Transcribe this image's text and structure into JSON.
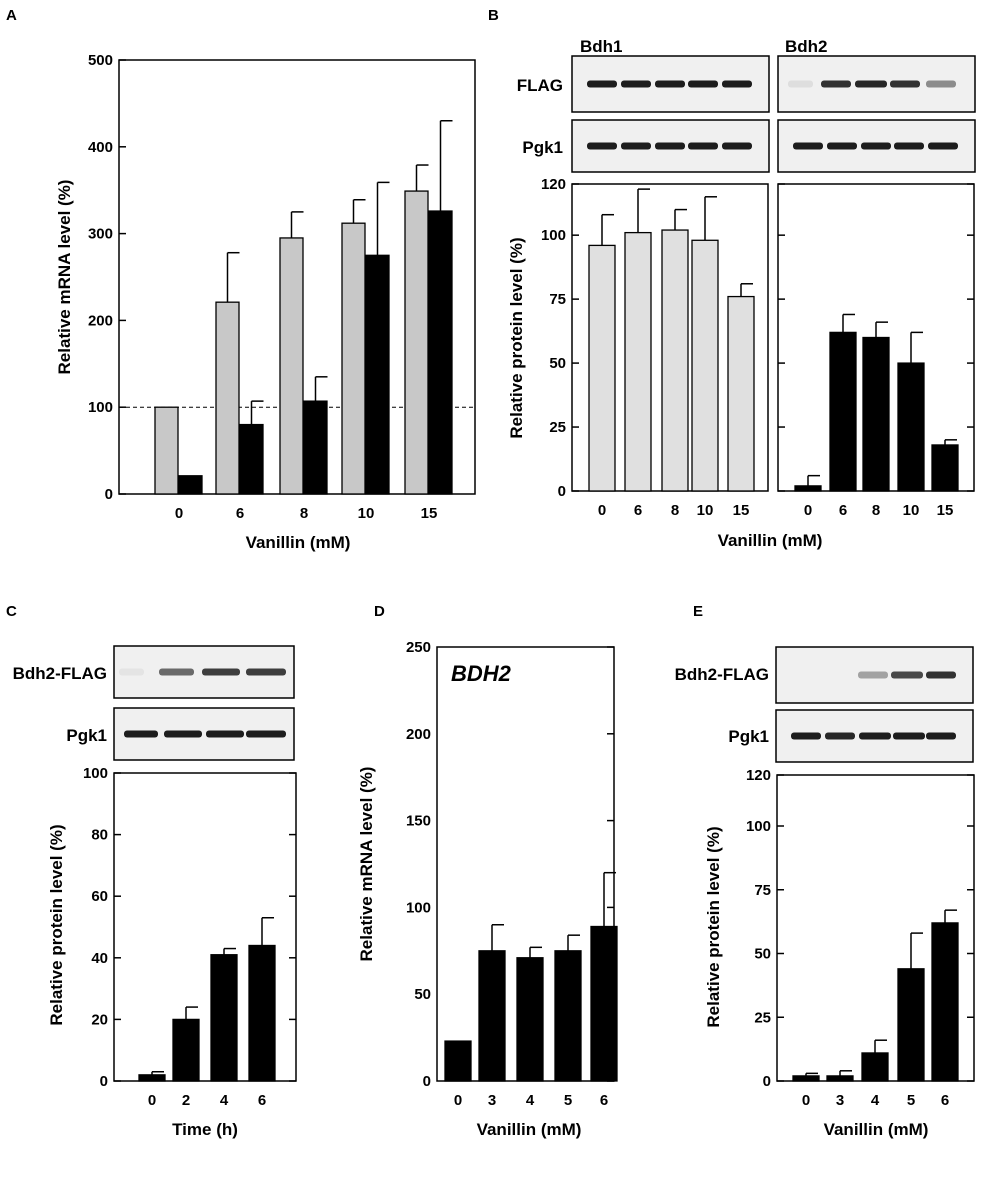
{
  "figure": {
    "panel_labels": [
      "A",
      "B",
      "C",
      "D",
      "E"
    ],
    "colors": {
      "bar_dark": "#000000",
      "bar_light": "#c8c8c8",
      "blot_bg": "#f0f0f0",
      "band": "#111111"
    }
  },
  "blots": {
    "B": {
      "lanes_left_title": "Bdh1",
      "lanes_right_title": "Bdh2",
      "row1_label": "FLAG",
      "row2_label": "Pgk1"
    },
    "C": {
      "row1_label": "Bdh2-FLAG",
      "row2_label": "Pgk1"
    },
    "E": {
      "row1_label": "Bdh2-FLAG",
      "row2_label": "Pgk1"
    }
  },
  "chart_data": [
    {
      "panel": "A",
      "type": "bar",
      "xlabel": "Vanillin (mM)",
      "ylabel": "Relative mRNA level (%)",
      "ylim": [
        0,
        500
      ],
      "yticks": [
        0,
        100,
        200,
        300,
        400,
        500
      ],
      "categories": [
        "0",
        "6",
        "8",
        "10",
        "15"
      ],
      "reference_line": 100,
      "series": [
        {
          "name": "light",
          "color": "#c8c8c8",
          "values": [
            100,
            221,
            295,
            312,
            349
          ],
          "errors": [
            0,
            57,
            30,
            27,
            30
          ]
        },
        {
          "name": "dark",
          "color": "#000000",
          "values": [
            21,
            80,
            107,
            275,
            326
          ],
          "errors": [
            0,
            27,
            28,
            84,
            104
          ]
        }
      ]
    },
    {
      "panel": "B-left",
      "type": "bar",
      "title": "Bdh1",
      "xlabel": "Vanillin (mM)",
      "ylabel": "Relative protein level (%)",
      "ylim": [
        0,
        120
      ],
      "yticks": [
        0,
        25,
        50,
        75,
        100,
        120
      ],
      "categories": [
        "0",
        "6",
        "8",
        "10",
        "15"
      ],
      "series": [
        {
          "name": "Bdh1",
          "color": "#e0e0e0",
          "values": [
            96,
            101,
            102,
            98,
            76
          ],
          "errors": [
            12,
            17,
            8,
            17,
            5
          ]
        }
      ]
    },
    {
      "panel": "B-right",
      "type": "bar",
      "title": "Bdh2",
      "xlabel": "Vanillin (mM)",
      "ylim": [
        0,
        120
      ],
      "categories": [
        "0",
        "6",
        "8",
        "10",
        "15"
      ],
      "series": [
        {
          "name": "Bdh2",
          "color": "#000000",
          "values": [
            2,
            62,
            60,
            50,
            18
          ],
          "errors": [
            4,
            7,
            6,
            12,
            2
          ]
        }
      ]
    },
    {
      "panel": "C",
      "type": "bar",
      "xlabel": "Time (h)",
      "ylabel": "Relative protein level (%)",
      "ylim": [
        0,
        100
      ],
      "yticks": [
        0,
        20,
        40,
        60,
        80,
        100
      ],
      "categories": [
        "0",
        "2",
        "4",
        "6"
      ],
      "series": [
        {
          "name": "Bdh2-FLAG",
          "color": "#000000",
          "values": [
            2,
            20,
            41,
            44
          ],
          "errors": [
            1,
            4,
            2,
            9
          ]
        }
      ]
    },
    {
      "panel": "D",
      "type": "bar",
      "title": "BDH2",
      "xlabel": "Vanillin (mM)",
      "ylabel": "Relative mRNA level (%)",
      "ylim": [
        0,
        250
      ],
      "yticks": [
        0,
        50,
        100,
        150,
        200,
        250
      ],
      "categories": [
        "0",
        "3",
        "4",
        "5",
        "6"
      ],
      "series": [
        {
          "name": "BDH2",
          "color": "#000000",
          "values": [
            23,
            75,
            71,
            75,
            89
          ],
          "errors": [
            0,
            15,
            6,
            9,
            31
          ]
        }
      ]
    },
    {
      "panel": "E",
      "type": "bar",
      "xlabel": "Vanillin (mM)",
      "ylabel": "Relative protein level (%)",
      "ylim": [
        0,
        120
      ],
      "yticks": [
        0,
        25,
        50,
        75,
        100,
        120
      ],
      "categories": [
        "0",
        "3",
        "4",
        "5",
        "6"
      ],
      "series": [
        {
          "name": "Bdh2-FLAG",
          "color": "#000000",
          "values": [
            2,
            2,
            11,
            44,
            62
          ],
          "errors": [
            1,
            2,
            5,
            14,
            5
          ]
        }
      ]
    }
  ]
}
